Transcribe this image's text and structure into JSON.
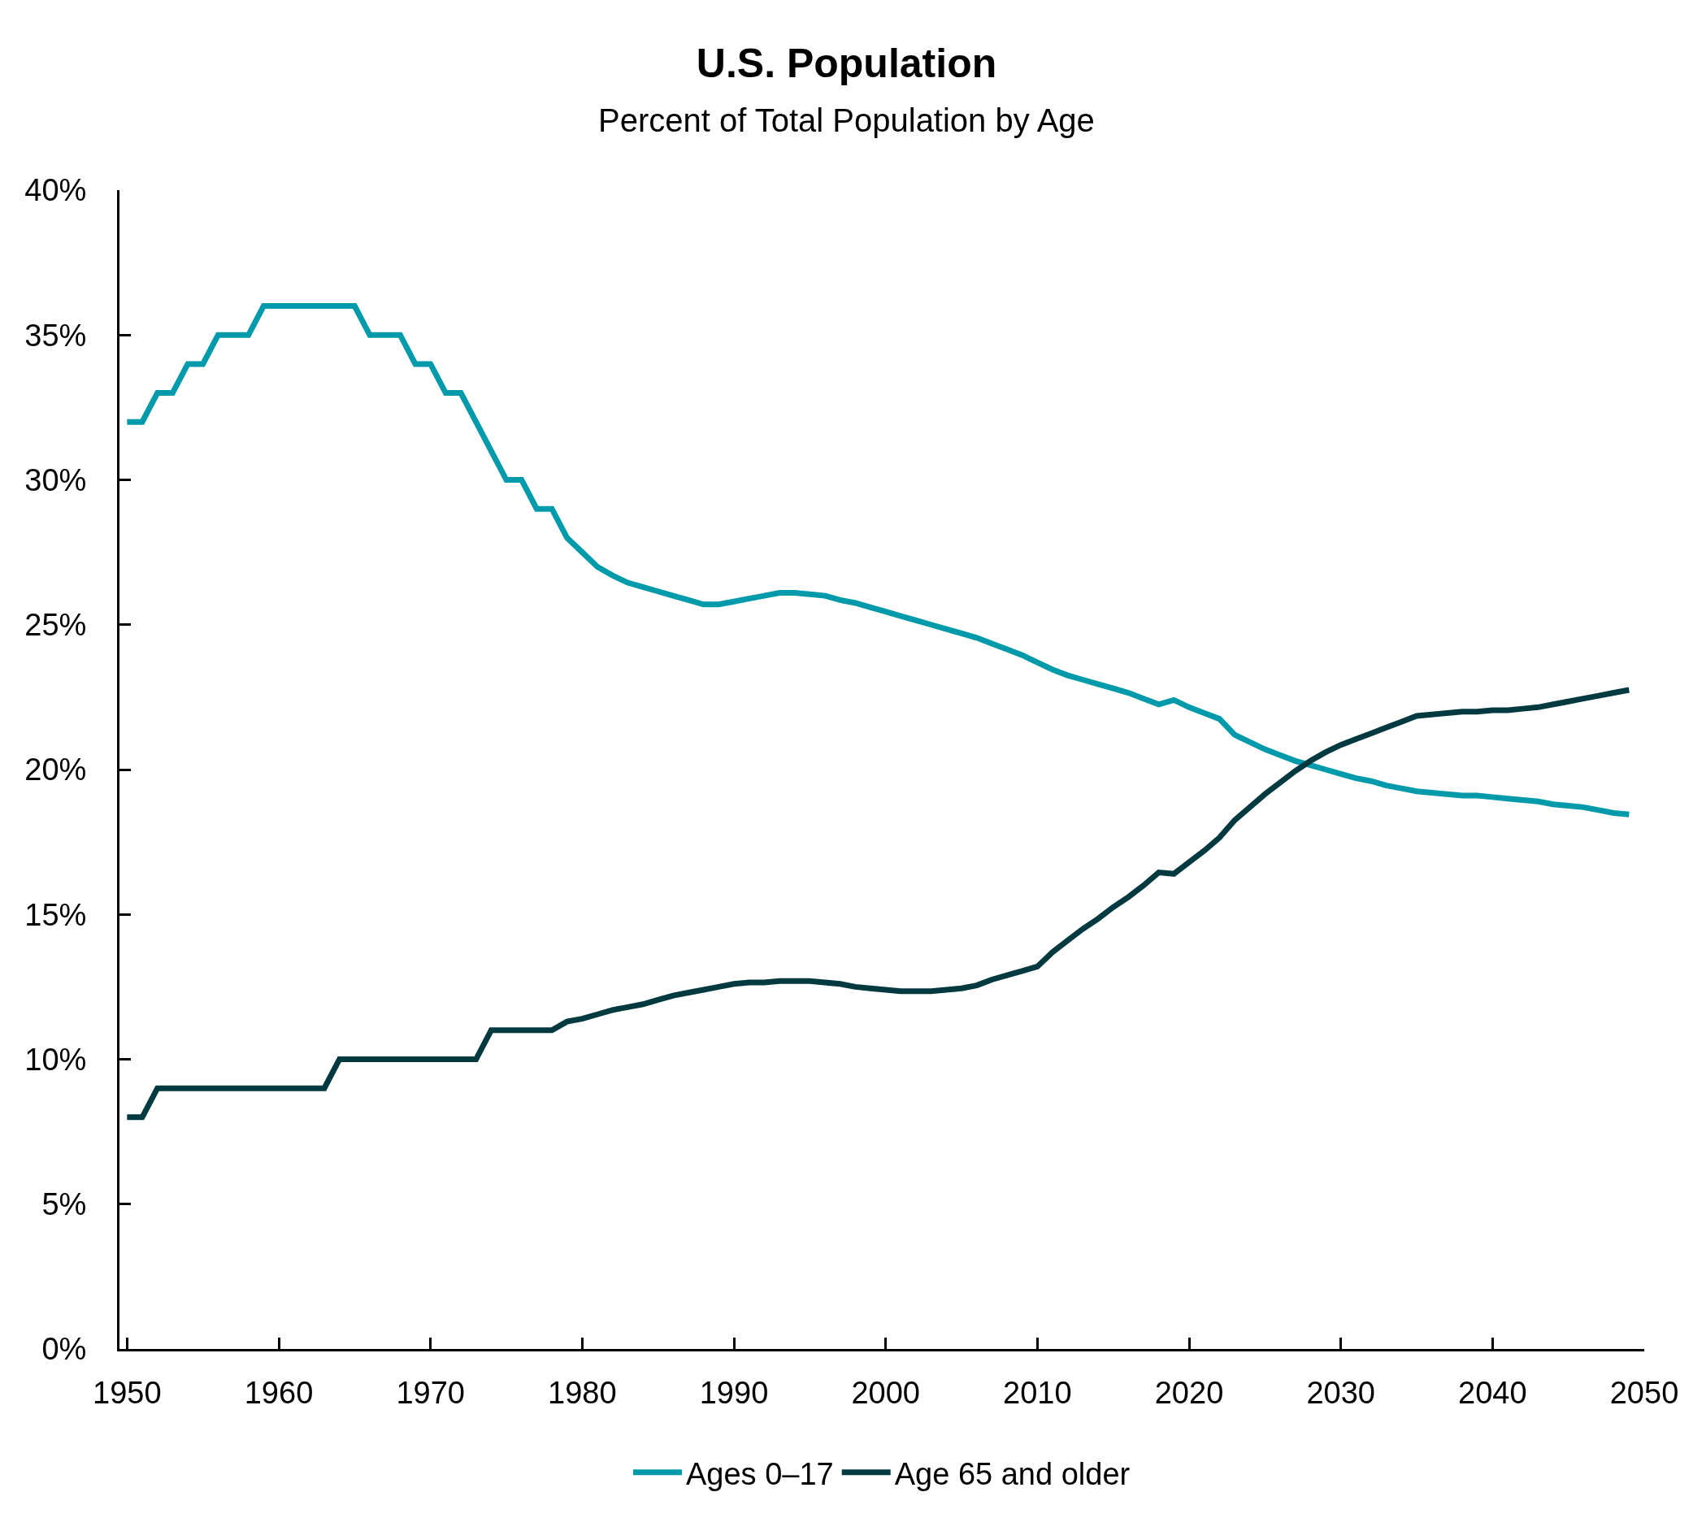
{
  "chart_data": {
    "type": "line",
    "title": "U.S. Population",
    "subtitle": "Percent of Total Population by Age",
    "x": [
      1950,
      1951,
      1952,
      1953,
      1954,
      1955,
      1956,
      1957,
      1958,
      1959,
      1960,
      1961,
      1962,
      1963,
      1964,
      1965,
      1966,
      1967,
      1968,
      1969,
      1970,
      1971,
      1972,
      1973,
      1974,
      1975,
      1976,
      1977,
      1978,
      1979,
      1980,
      1981,
      1982,
      1983,
      1984,
      1985,
      1986,
      1987,
      1988,
      1989,
      1990,
      1991,
      1992,
      1993,
      1994,
      1995,
      1996,
      1997,
      1998,
      1999,
      2000,
      2001,
      2002,
      2003,
      2004,
      2005,
      2006,
      2007,
      2008,
      2009,
      2010,
      2011,
      2012,
      2013,
      2014,
      2015,
      2016,
      2017,
      2018,
      2019,
      2020,
      2021,
      2022,
      2023,
      2024,
      2025,
      2026,
      2027,
      2028,
      2029,
      2030,
      2031,
      2032,
      2033,
      2034,
      2035,
      2036,
      2037,
      2038,
      2039,
      2040,
      2041,
      2042,
      2043,
      2044,
      2045,
      2046,
      2047,
      2048,
      2049
    ],
    "series": [
      {
        "name": "Ages 0–17",
        "color": "#009aaa",
        "values": [
          32,
          32,
          33,
          33,
          34,
          34,
          35,
          35,
          35,
          36,
          36,
          36,
          36,
          36,
          36,
          36,
          35,
          35,
          35,
          34,
          34,
          33,
          33,
          32,
          31,
          30,
          30,
          29,
          29,
          28,
          27.5,
          27.0,
          26.7,
          26.45,
          26.3,
          26.15,
          26.0,
          25.85,
          25.7,
          25.7,
          25.8,
          25.9,
          26.0,
          26.1,
          26.1,
          26.05,
          26.0,
          25.85,
          25.75,
          25.6,
          25.45,
          25.3,
          25.15,
          25.0,
          24.85,
          24.7,
          24.55,
          24.35,
          24.15,
          23.95,
          23.7,
          23.45,
          23.25,
          23.1,
          22.95,
          22.8,
          22.65,
          22.45,
          22.25,
          22.4,
          22.15,
          21.95,
          21.75,
          21.2,
          20.95,
          20.7,
          20.5,
          20.3,
          20.15,
          20.0,
          19.85,
          19.7,
          19.6,
          19.45,
          19.35,
          19.25,
          19.2,
          19.15,
          19.1,
          19.1,
          19.05,
          19.0,
          18.95,
          18.9,
          18.8,
          18.75,
          18.7,
          18.6,
          18.5,
          18.45
        ]
      },
      {
        "name": "Age 65 and older",
        "color": "#003a40",
        "values": [
          8,
          8,
          9,
          9,
          9,
          9,
          9,
          9,
          9,
          9,
          9,
          9,
          9,
          9,
          10,
          10,
          10,
          10,
          10,
          10,
          10,
          10,
          10,
          10,
          11,
          11,
          11,
          11,
          11,
          11.3,
          11.4,
          11.55,
          11.7,
          11.8,
          11.9,
          12.05,
          12.2,
          12.3,
          12.4,
          12.5,
          12.6,
          12.65,
          12.65,
          12.7,
          12.7,
          12.7,
          12.65,
          12.6,
          12.5,
          12.45,
          12.4,
          12.35,
          12.35,
          12.35,
          12.4,
          12.45,
          12.55,
          12.75,
          12.9,
          13.05,
          13.2,
          13.7,
          14.1,
          14.5,
          14.85,
          15.25,
          15.6,
          16.0,
          16.45,
          16.4,
          16.8,
          17.2,
          17.65,
          18.25,
          18.7,
          19.15,
          19.55,
          19.95,
          20.3,
          20.6,
          20.85,
          21.05,
          21.25,
          21.45,
          21.65,
          21.85,
          21.9,
          21.95,
          22.0,
          22.0,
          22.05,
          22.05,
          22.1,
          22.15,
          22.25,
          22.35,
          22.45,
          22.55,
          22.65,
          22.75
        ]
      }
    ],
    "xlim": [
      1949.5,
      2050
    ],
    "xticks": [
      1950,
      1960,
      1970,
      1980,
      1990,
      2000,
      2010,
      2020,
      2030,
      2040,
      2050
    ],
    "ylim": [
      0,
      40
    ],
    "yticks": [
      {
        "value": 0,
        "label": "0%"
      },
      {
        "value": 5,
        "label": "5%"
      },
      {
        "value": 10,
        "label": "10%"
      },
      {
        "value": 15,
        "label": "15%"
      },
      {
        "value": 20,
        "label": "20%"
      },
      {
        "value": 25,
        "label": "25%"
      },
      {
        "value": 30,
        "label": "30%"
      },
      {
        "value": 35,
        "label": "35%"
      },
      {
        "value": 40,
        "label": "40%"
      }
    ],
    "legend": "bottom",
    "line_style": "solid"
  }
}
